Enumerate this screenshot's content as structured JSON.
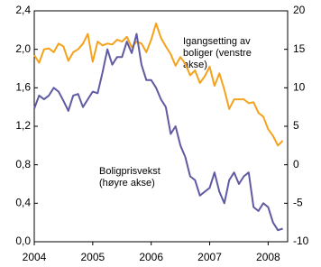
{
  "chart_data": {
    "type": "line",
    "categories": [
      "2004",
      null,
      null,
      null,
      null,
      null,
      null,
      null,
      null,
      null,
      null,
      null,
      "2005",
      null,
      null,
      null,
      null,
      null,
      null,
      null,
      null,
      null,
      null,
      null,
      "2006",
      null,
      null,
      null,
      null,
      null,
      null,
      null,
      null,
      null,
      null,
      null,
      "2007",
      null,
      null,
      null,
      null,
      null,
      null,
      null,
      null,
      null,
      null,
      null,
      "2008",
      null,
      null,
      null
    ],
    "series": [
      {
        "name": "Igangsetting av boliger (venstre akse)",
        "color": "#f5a21b",
        "values": [
          1.94,
          1.86,
          2.0,
          2.01,
          1.97,
          2.06,
          2.03,
          1.88,
          1.97,
          2.0,
          2.06,
          2.16,
          1.87,
          2.08,
          2.04,
          2.06,
          2.05,
          2.1,
          2.08,
          2.13,
          2.02,
          2.08,
          2.06,
          1.97,
          2.1,
          2.27,
          2.12,
          2.03,
          1.95,
          1.83,
          1.92,
          1.85,
          1.73,
          1.78,
          1.65,
          1.72,
          1.82,
          1.62,
          1.75,
          1.58,
          1.38,
          1.48,
          1.48,
          1.48,
          1.44,
          1.45,
          1.34,
          1.3,
          1.17,
          1.1,
          1.0,
          1.05
        ]
      },
      {
        "name": "Boligprisvekst (høyre akse)",
        "color": "#5f5aa2",
        "axis": "y2",
        "values": [
          7.3,
          9,
          8.5,
          9,
          10,
          9.5,
          8.3,
          7,
          9,
          9.2,
          7.5,
          8.5,
          9.5,
          9.3,
          12,
          15,
          13,
          14,
          14,
          16,
          14.5,
          17,
          13,
          11,
          11,
          10,
          8.5,
          7.5,
          4,
          5,
          2.5,
          1,
          -1.5,
          -2,
          -4,
          -3.5,
          -3,
          -1,
          -3.5,
          -5,
          -2,
          -1,
          -2.5,
          -1.5,
          -1,
          -5.5,
          -6,
          -5,
          -5.5,
          -7.5,
          -8.5,
          -8.3
        ]
      }
    ],
    "annotations": [
      {
        "lines": [
          "Igangsetting av",
          "boliger (venstre",
          "akse)"
        ]
      },
      {
        "lines": [
          "Boligprisvekst",
          "(høyre akse)"
        ]
      }
    ],
    "ylim": [
      0,
      2.4
    ],
    "yticks": [
      {
        "value": 0,
        "label": "0,0"
      },
      {
        "value": 0.4,
        "label": "0,4"
      },
      {
        "value": 0.8,
        "label": "0,8"
      },
      {
        "value": 1.2,
        "label": "1,2"
      },
      {
        "value": 1.6,
        "label": "1,6"
      },
      {
        "value": 2.0,
        "label": "2,0"
      },
      {
        "value": 2.4,
        "label": "2,4"
      }
    ],
    "y2lim": [
      -10,
      20
    ],
    "y2ticks": [
      -10,
      -5,
      0,
      5,
      10,
      15,
      20
    ]
  }
}
